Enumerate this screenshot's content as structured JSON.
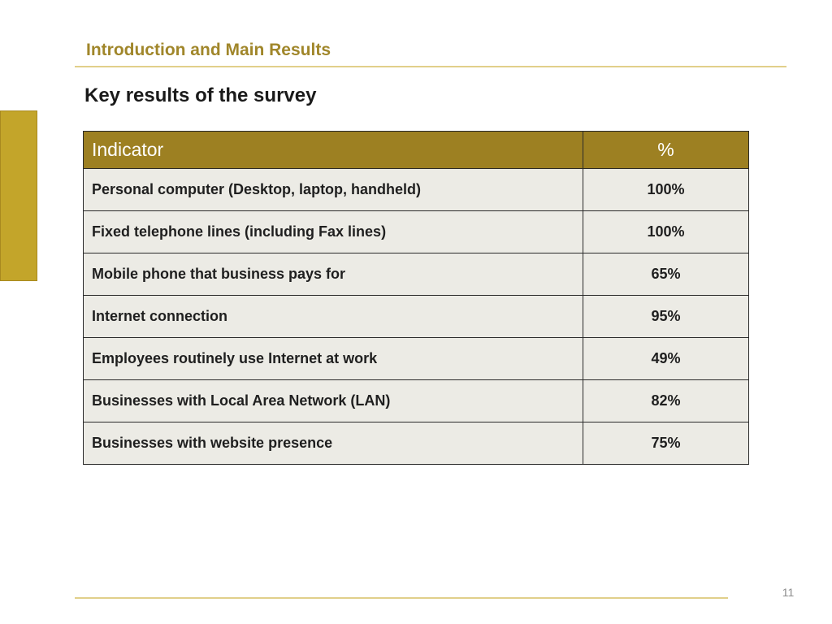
{
  "section": {
    "header": "Introduction and Main Results"
  },
  "slide": {
    "title": "Key results of the survey",
    "page_number": "11"
  },
  "table": {
    "columns": [
      "Indicator",
      "%"
    ],
    "rows": [
      {
        "indicator": "Personal computer (Desktop, laptop, handheld)",
        "percent": "100%"
      },
      {
        "indicator": "Fixed telephone lines (including Fax lines)",
        "percent": "100%"
      },
      {
        "indicator": "Mobile phone that business pays for",
        "percent": "65%"
      },
      {
        "indicator": "Internet connection",
        "percent": "95%"
      },
      {
        "indicator": "Employees routinely use Internet at work",
        "percent": "49%"
      },
      {
        "indicator": "Businesses with Local Area Network (LAN)",
        "percent": "82%"
      },
      {
        "indicator": "Businesses with website presence",
        "percent": "75%"
      }
    ]
  },
  "colors": {
    "accent": "#c3a52a",
    "header_fill": "#9d8022",
    "row_fill": "#ecebe5",
    "section_text": "#a0862a"
  }
}
